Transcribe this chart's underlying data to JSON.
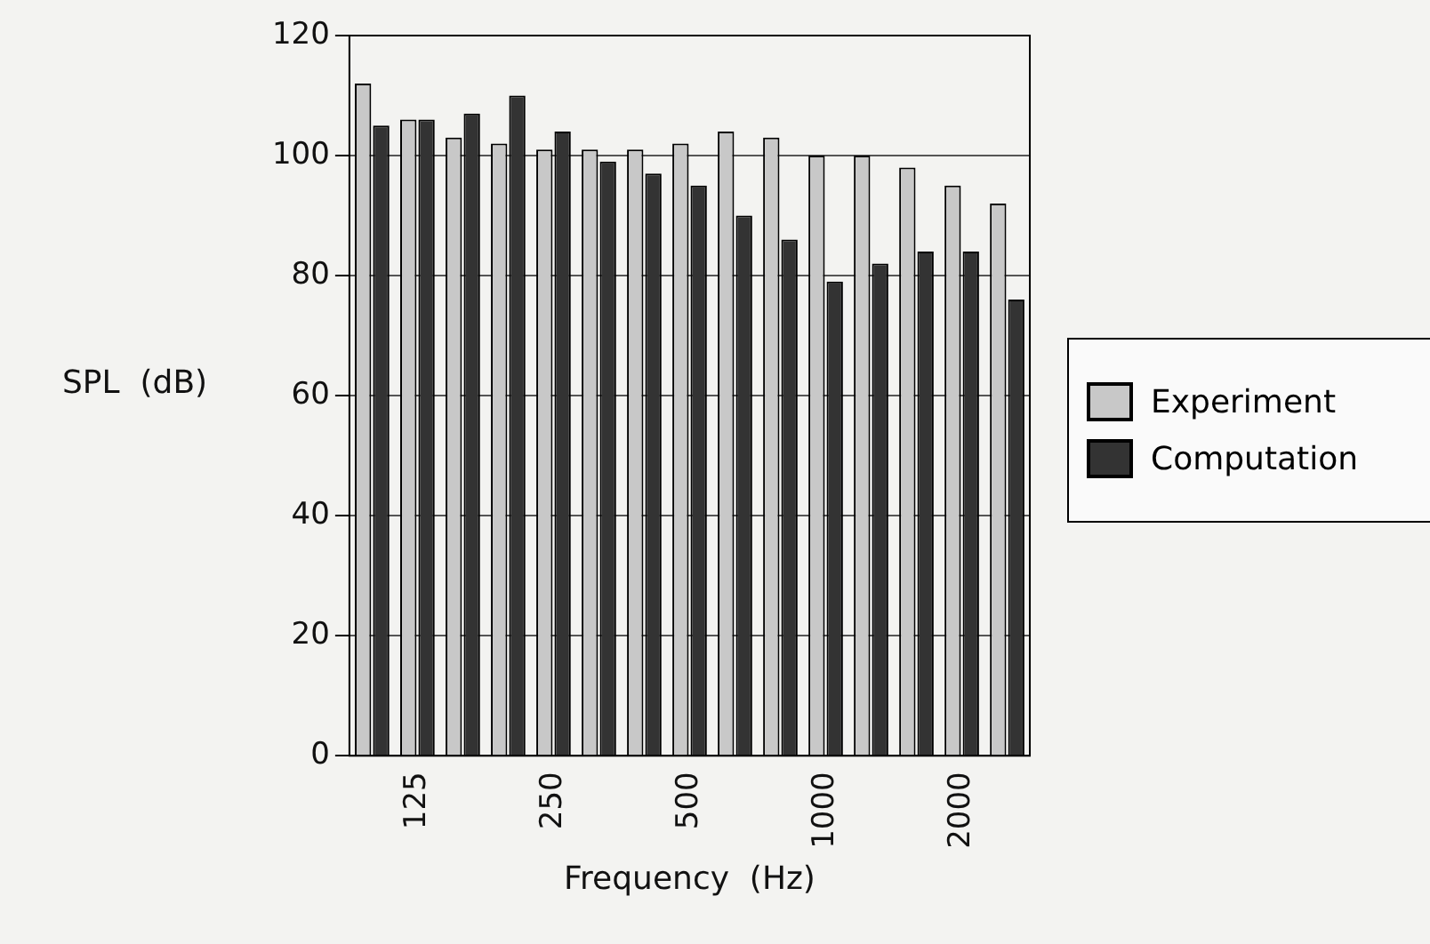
{
  "chart_data": {
    "type": "bar",
    "xlabel": "Frequency  (Hz)",
    "ylabel": "SPL  (dB)",
    "categories": [
      null,
      "125",
      null,
      null,
      "250",
      null,
      null,
      "500",
      null,
      null,
      "1000",
      null,
      null,
      "2000",
      null
    ],
    "series": [
      {
        "name": "Experiment",
        "color": "#c8c8c8",
        "values": [
          112,
          106,
          103,
          102,
          101,
          101,
          101,
          102,
          104,
          103,
          100,
          100,
          98,
          95,
          92
        ]
      },
      {
        "name": "Computation",
        "color": "#333333",
        "values": [
          105,
          106,
          107,
          110,
          104,
          99,
          97,
          95,
          90,
          86,
          79,
          82,
          84,
          84,
          76
        ]
      }
    ],
    "ylim": [
      0,
      120
    ],
    "yticks": [
      0,
      20,
      40,
      60,
      80,
      100,
      120
    ],
    "grid": "y",
    "legend": "right"
  }
}
